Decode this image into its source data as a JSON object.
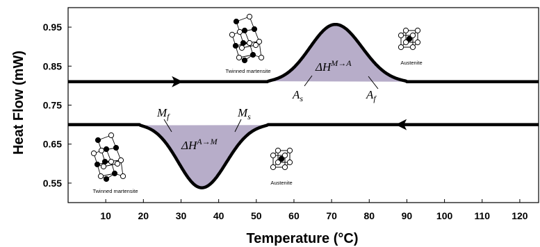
{
  "chart_data": {
    "type": "line",
    "title": "",
    "xlabel": "Temperature (°C)",
    "ylabel": "Heat Flow (mW)",
    "xlim": [
      0,
      125
    ],
    "ylim": [
      0.5,
      1.0
    ],
    "xticks": [
      10,
      20,
      30,
      40,
      50,
      60,
      70,
      80,
      90,
      100,
      110,
      120
    ],
    "yticks": [
      0.55,
      0.65,
      0.75,
      0.85,
      0.95
    ],
    "ytick_labels": [
      "0.55",
      "0.65",
      "0.75",
      "0.85",
      "0.95"
    ],
    "grid": false,
    "legend": "none",
    "series": [
      {
        "direction": "heating",
        "baseline": 0.81,
        "peak": {
          "x": 71,
          "y": 0.957
        },
        "peak_start_x": 53,
        "peak_end_x": 90,
        "fill_color": "#b7adc9",
        "line_color": "#000000",
        "arrow": "right"
      },
      {
        "direction": "cooling",
        "baseline": 0.7,
        "peak": {
          "x": 35.5,
          "y": 0.538
        },
        "peak_start_x": 19,
        "peak_end_x": 53,
        "fill_color": "#b7adc9",
        "line_color": "#000000",
        "arrow": "left"
      }
    ],
    "annotations": {
      "dH_MA": {
        "base": "ΔH",
        "sup": "M→A"
      },
      "dH_AM": {
        "base": "ΔH",
        "sup": "A→M"
      },
      "As": {
        "base": "A",
        "sub": "s"
      },
      "Af": {
        "base": "A",
        "sub": "f"
      },
      "Ms": {
        "base": "M",
        "sub": "s"
      },
      "Mf": {
        "base": "M",
        "sub": "f"
      },
      "twinned_top": "Twinned martensite",
      "austenite_top": "Austenite",
      "twinned_bottom": "Twinned martensite",
      "austenite_bottom": "Austenite"
    }
  }
}
